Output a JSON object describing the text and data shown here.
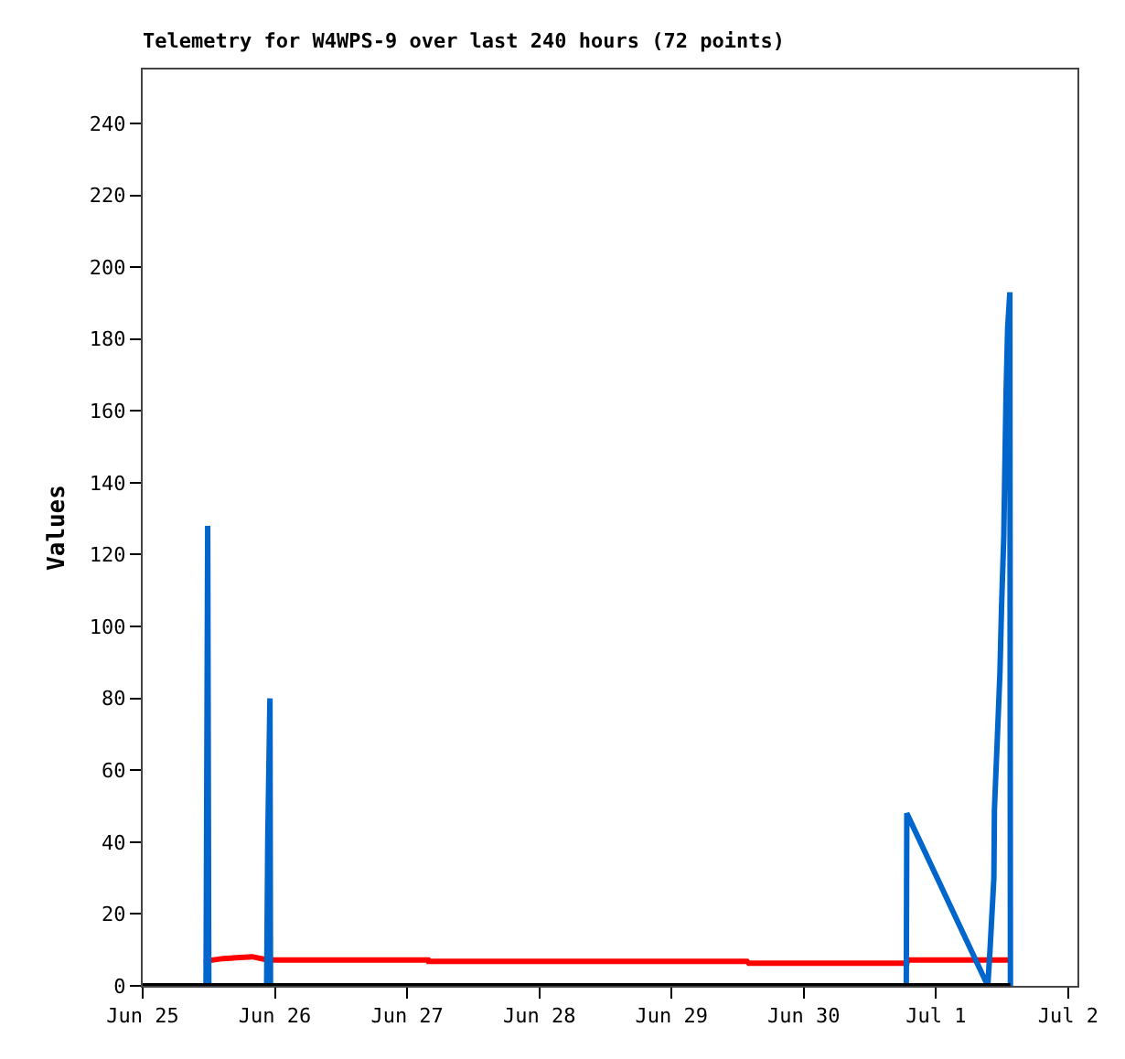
{
  "chart_data": {
    "type": "line",
    "title": "Telemetry for W4WPS-9 over last 240 hours (72 points)",
    "ylabel": "Values",
    "xlim": [
      "--06-25T00:00",
      "--07-02T01:40"
    ],
    "xticks": [
      {
        "value": "--06-25",
        "label": "Jun 25"
      },
      {
        "value": "--06-26",
        "label": "Jun 26"
      },
      {
        "value": "--06-27",
        "label": "Jun 27"
      },
      {
        "value": "--06-28",
        "label": "Jun 28"
      },
      {
        "value": "--06-29",
        "label": "Jun 29"
      },
      {
        "value": "--06-30",
        "label": "Jun 30"
      },
      {
        "value": "--07-01",
        "label": "Jul 1"
      },
      {
        "value": "--07-02",
        "label": "Jul 2"
      }
    ],
    "ylim": [
      0,
      255
    ],
    "yticks": [
      0,
      20,
      40,
      60,
      80,
      100,
      120,
      140,
      160,
      180,
      200,
      220,
      240
    ],
    "grid": false,
    "marker": "none",
    "line_style": "solid",
    "series": [
      {
        "color": "#ff0000",
        "x": [
          "--06-25T11:18",
          "--06-25T11:48",
          "--06-25T14:36",
          "--06-25T19:54",
          "--06-25T22:42",
          "--06-27T03:48",
          "--06-27T03:54",
          "--06-29T13:42",
          "--06-29T14:00",
          "--06-30T18:42",
          "--06-30T18:48",
          "--07-01T13:24"
        ],
        "values": [
          6.3,
          7.0,
          7.6,
          8.1,
          7.2,
          7.2,
          6.8,
          6.8,
          6.3,
          6.3,
          7.2,
          7.2
        ]
      },
      {
        "color": "#0066cc",
        "x": [
          "--06-25T11:30",
          "--06-25T11:48",
          "--06-25T12:00",
          "--06-25T22:30",
          "--06-25T22:42",
          "--06-25T23:06",
          "--06-25T23:12",
          "--06-30T18:36",
          "--06-30T18:42",
          "--07-01T09:24",
          "--07-01T09:48",
          "--07-01T10:30",
          "--07-01T10:36",
          "--07-01T11:06",
          "--07-01T11:36",
          "--07-01T11:54",
          "--07-01T12:18",
          "--07-01T12:30",
          "--07-01T12:42",
          "--07-01T13:00",
          "--07-01T13:24",
          "--07-01T13:30"
        ],
        "values": [
          0,
          128,
          0,
          0,
          40,
          80,
          0,
          0,
          48,
          0,
          10,
          30,
          49,
          68,
          87,
          106,
          125,
          145,
          164,
          183,
          193,
          0
        ]
      },
      {
        "color": "#000000",
        "x": [
          "--06-25T00:00",
          "--07-01T13:30"
        ],
        "values": [
          0,
          0
        ]
      }
    ]
  }
}
